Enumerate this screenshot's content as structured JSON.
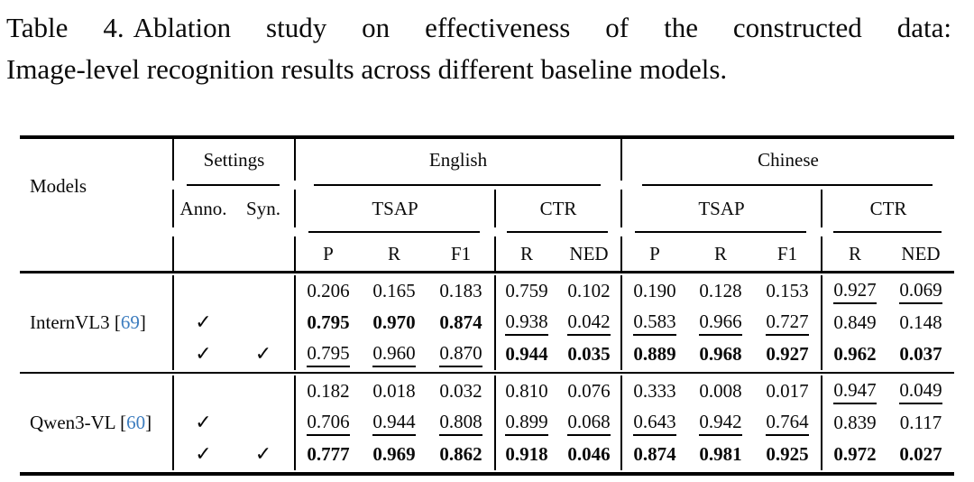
{
  "caption": {
    "label": "Table 4.",
    "line1_rest": "Ablation study on effectiveness of the constructed data:",
    "line2": "Image-level recognition results across different baseline models."
  },
  "table": {
    "header": {
      "models_label": "Models",
      "settings_label": "Settings",
      "anno_label": "Anno.",
      "syn_label": "Syn.",
      "lang_groups": [
        "English",
        "Chinese"
      ],
      "metric_groups": [
        "TSAP",
        "CTR"
      ],
      "tsap_cols": [
        "P",
        "R",
        "F1"
      ],
      "ctr_cols": [
        "R",
        "NED"
      ]
    },
    "checkmark": "✓",
    "citation_color": "#3d7dbf",
    "groups": [
      {
        "model": "InternVL3",
        "cite": "69",
        "rows": [
          {
            "anno": false,
            "syn": false,
            "cells": [
              [
                "0.206",
                "p"
              ],
              [
                "0.165",
                "p"
              ],
              [
                "0.183",
                "p"
              ],
              [
                "0.759",
                "p"
              ],
              [
                "0.102",
                "p"
              ],
              [
                "0.190",
                "p"
              ],
              [
                "0.128",
                "p"
              ],
              [
                "0.153",
                "p"
              ],
              [
                "0.927",
                "u"
              ],
              [
                "0.069",
                "u"
              ]
            ]
          },
          {
            "anno": true,
            "syn": false,
            "cells": [
              [
                "0.795",
                "b"
              ],
              [
                "0.970",
                "b"
              ],
              [
                "0.874",
                "b"
              ],
              [
                "0.938",
                "u"
              ],
              [
                "0.042",
                "u"
              ],
              [
                "0.583",
                "u"
              ],
              [
                "0.966",
                "u"
              ],
              [
                "0.727",
                "u"
              ],
              [
                "0.849",
                "p"
              ],
              [
                "0.148",
                "p"
              ]
            ]
          },
          {
            "anno": true,
            "syn": true,
            "cells": [
              [
                "0.795",
                "u"
              ],
              [
                "0.960",
                "u"
              ],
              [
                "0.870",
                "u"
              ],
              [
                "0.944",
                "b"
              ],
              [
                "0.035",
                "b"
              ],
              [
                "0.889",
                "b"
              ],
              [
                "0.968",
                "b"
              ],
              [
                "0.927",
                "b"
              ],
              [
                "0.962",
                "b"
              ],
              [
                "0.037",
                "b"
              ]
            ]
          }
        ]
      },
      {
        "model": "Qwen3-VL",
        "cite": "60",
        "rows": [
          {
            "anno": false,
            "syn": false,
            "cells": [
              [
                "0.182",
                "p"
              ],
              [
                "0.018",
                "p"
              ],
              [
                "0.032",
                "p"
              ],
              [
                "0.810",
                "p"
              ],
              [
                "0.076",
                "p"
              ],
              [
                "0.333",
                "p"
              ],
              [
                "0.008",
                "p"
              ],
              [
                "0.017",
                "p"
              ],
              [
                "0.947",
                "u"
              ],
              [
                "0.049",
                "u"
              ]
            ]
          },
          {
            "anno": true,
            "syn": false,
            "cells": [
              [
                "0.706",
                "u"
              ],
              [
                "0.944",
                "u"
              ],
              [
                "0.808",
                "u"
              ],
              [
                "0.899",
                "u"
              ],
              [
                "0.068",
                "u"
              ],
              [
                "0.643",
                "u"
              ],
              [
                "0.942",
                "u"
              ],
              [
                "0.764",
                "u"
              ],
              [
                "0.839",
                "p"
              ],
              [
                "0.117",
                "p"
              ]
            ]
          },
          {
            "anno": true,
            "syn": true,
            "cells": [
              [
                "0.777",
                "b"
              ],
              [
                "0.969",
                "b"
              ],
              [
                "0.862",
                "b"
              ],
              [
                "0.918",
                "b"
              ],
              [
                "0.046",
                "b"
              ],
              [
                "0.874",
                "b"
              ],
              [
                "0.981",
                "b"
              ],
              [
                "0.925",
                "b"
              ],
              [
                "0.972",
                "b"
              ],
              [
                "0.027",
                "b"
              ]
            ]
          }
        ]
      }
    ]
  }
}
